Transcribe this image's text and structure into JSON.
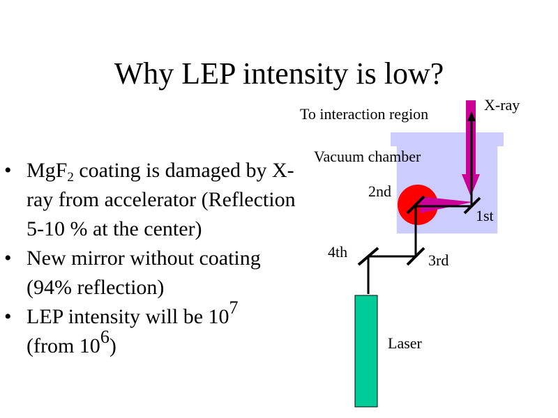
{
  "title": "Why LEP intensity is low?",
  "bullets": {
    "b1": {
      "pre": "MgF",
      "sub": "2",
      "post": " coating is damaged by X-ray from accelerator (Reflection 5-10 % at the center)"
    },
    "b2": {
      "text": "New mirror without coating (94% reflection)"
    },
    "b3": {
      "text1": "LEP intensity will be 10",
      "sup1": "7",
      "text2": "(from 10",
      "sup2": "6",
      "text3": ")"
    }
  },
  "diagram": {
    "to_interaction": "To interaction region",
    "xray": "X-ray",
    "vacuum_chamber": "Vacuum chamber",
    "mirror_1": "1st",
    "mirror_2": "2nd",
    "mirror_3": "3rd",
    "mirror_4": "4th",
    "laser": "Laser",
    "colors": {
      "chamber": "#ccccff",
      "xray_arrow": "#cc0099",
      "target": "#ff0000",
      "laser_body": "#00cc99",
      "beam": "#000000"
    }
  }
}
